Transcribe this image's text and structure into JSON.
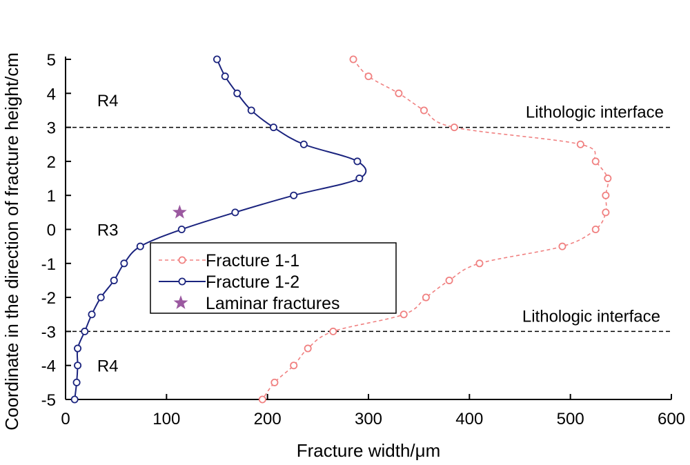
{
  "chart_data": {
    "type": "line",
    "xlabel": "Fracture width/μm",
    "ylabel": "Coordinate in the direction of fracture height/cm",
    "xlim": [
      0,
      600
    ],
    "ylim": [
      -5,
      5
    ],
    "xticks": [
      0,
      100,
      200,
      300,
      400,
      500,
      600
    ],
    "yticks": [
      5,
      4,
      3,
      2,
      1,
      0,
      -1,
      -2,
      -3,
      -4,
      -5
    ],
    "grid": false,
    "legend_position": "center-left",
    "series": [
      {
        "name": "Fracture 1-1",
        "color": "#f08080",
        "style": "dashed-open-circle",
        "points": [
          [
            285,
            5
          ],
          [
            300,
            4.5
          ],
          [
            330,
            4
          ],
          [
            355,
            3.5
          ],
          [
            385,
            3
          ],
          [
            510,
            2.5
          ],
          [
            525,
            2
          ],
          [
            537,
            1.5
          ],
          [
            535,
            1
          ],
          [
            535,
            0.5
          ],
          [
            525,
            0
          ],
          [
            492,
            -0.5
          ],
          [
            410,
            -1
          ],
          [
            380,
            -1.5
          ],
          [
            357,
            -2
          ],
          [
            335,
            -2.5
          ],
          [
            265,
            -3
          ],
          [
            240,
            -3.5
          ],
          [
            226,
            -4
          ],
          [
            207,
            -4.5
          ],
          [
            195,
            -5
          ]
        ]
      },
      {
        "name": "Fracture 1-2",
        "color": "#1a237e",
        "style": "solid-open-circle",
        "points": [
          [
            150,
            5
          ],
          [
            158,
            4.5
          ],
          [
            170,
            4
          ],
          [
            184,
            3.5
          ],
          [
            206,
            3
          ],
          [
            236,
            2.5
          ],
          [
            289,
            2
          ],
          [
            291,
            1.5
          ],
          [
            226,
            1
          ],
          [
            168,
            0.5
          ],
          [
            115,
            0
          ],
          [
            74,
            -0.5
          ],
          [
            58,
            -1
          ],
          [
            48,
            -1.5
          ],
          [
            35,
            -2
          ],
          [
            26,
            -2.5
          ],
          [
            19,
            -3
          ],
          [
            12,
            -3.5
          ],
          [
            12,
            -4
          ],
          [
            11,
            -4.5
          ],
          [
            9,
            -5
          ]
        ]
      }
    ],
    "markers": [
      {
        "name": "Laminar fractures",
        "color": "#9b59a0",
        "points": [
          [
            113,
            0.5
          ]
        ]
      }
    ],
    "reference_lines": [
      {
        "y": 3,
        "label": "Lithologic interface"
      },
      {
        "y": -3,
        "label": "Lithologic interface"
      }
    ],
    "region_labels": [
      {
        "text": "R4",
        "x": 45,
        "y": 3.8
      },
      {
        "text": "R3",
        "x": 45,
        "y": 0
      },
      {
        "text": "R4",
        "x": 45,
        "y": -4
      }
    ]
  }
}
